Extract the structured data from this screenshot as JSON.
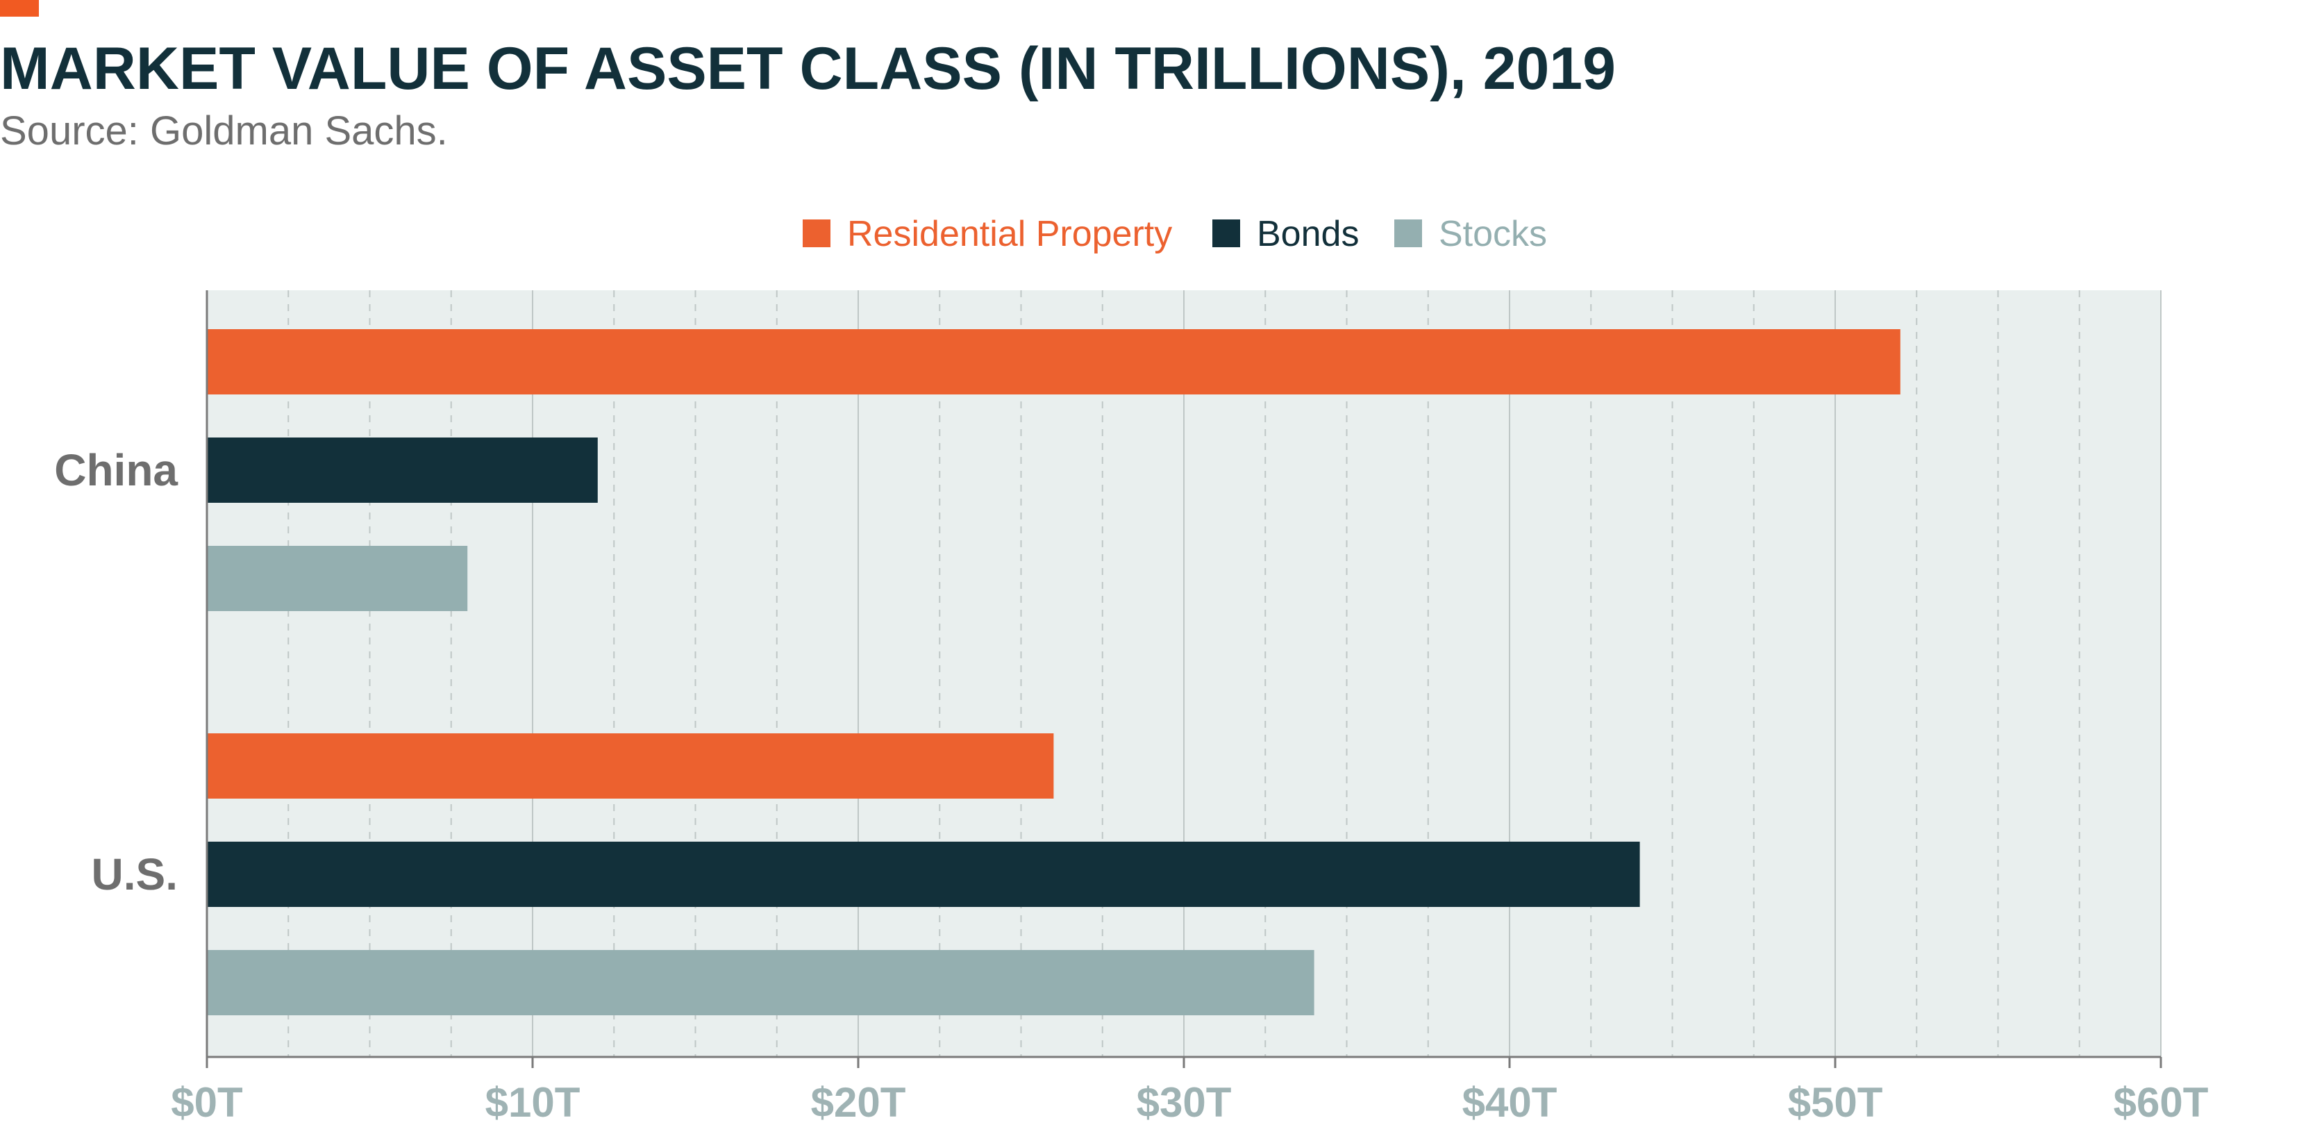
{
  "chart_data": {
    "type": "bar",
    "orientation": "horizontal",
    "title": "MARKET VALUE OF ASSET CLASS (IN TRILLIONS), 2019",
    "subtitle": "Source: Goldman Sachs.",
    "categories": [
      "China",
      "U.S."
    ],
    "series": [
      {
        "name": "Residential Property",
        "color": "#EC612F",
        "values": [
          52,
          26
        ]
      },
      {
        "name": "Bonds",
        "color": "#12303A",
        "values": [
          12,
          44
        ]
      },
      {
        "name": "Stocks",
        "color": "#94AFB0",
        "values": [
          8,
          34
        ]
      }
    ],
    "xlim": [
      0,
      60
    ],
    "ticks": [
      0,
      10,
      20,
      30,
      40,
      50,
      60
    ],
    "tick_labels": [
      "$0T",
      "$10T",
      "$20T",
      "$30T",
      "$40T",
      "$50T",
      "$60T"
    ],
    "grid": true,
    "legend_position": "top-center",
    "colors": {
      "accent": "#F15A22",
      "title": "#12303A",
      "subtitle": "#6E6E6E",
      "plot_bg": "#E9EFEE",
      "grid": "#BFC7C6",
      "tick_label": "#9FB3B4",
      "category_label": "#6E6E6E"
    }
  }
}
